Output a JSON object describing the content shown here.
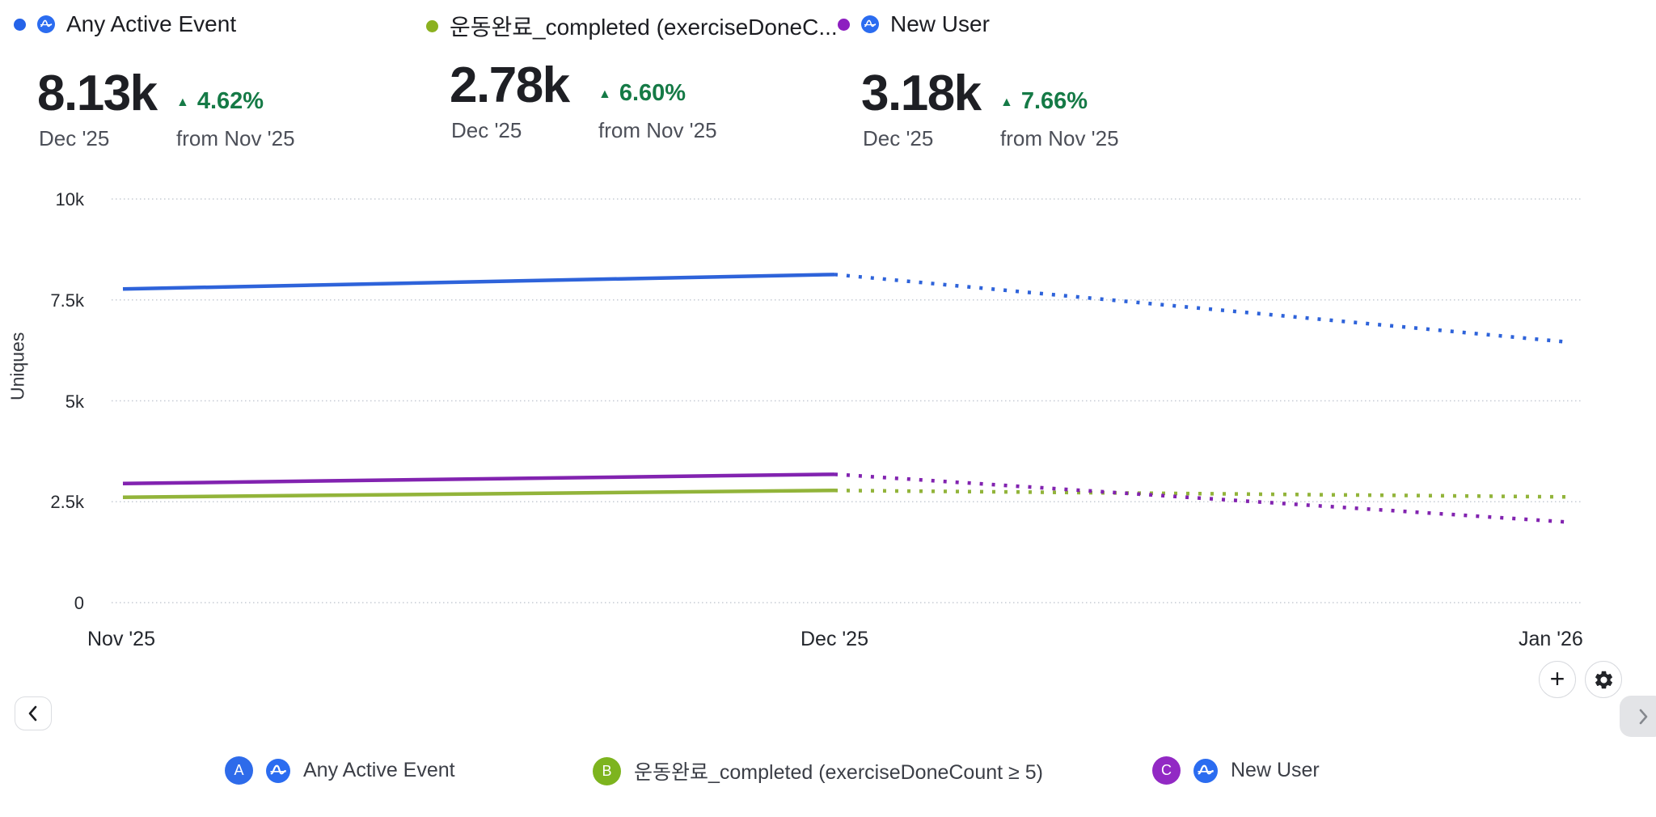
{
  "series_headers": [
    {
      "label": "Any Active Event",
      "dot_color": "#2563e8",
      "has_app_icon": true
    },
    {
      "label": "운동완료_completed (exerciseDoneC...",
      "dot_color": "#8bb120",
      "has_app_icon": false
    },
    {
      "label": "New User",
      "dot_color": "#8d1fc0",
      "has_app_icon": true
    }
  ],
  "metric_cards": [
    {
      "value": "8.13k",
      "period": "Dec '25",
      "delta_arrow": "▲",
      "delta": "4.62%",
      "delta_direction": "up",
      "compare": "from Nov '25"
    },
    {
      "value": "2.78k",
      "period": "Dec '25",
      "delta_arrow": "▲",
      "delta": "6.60%",
      "delta_direction": "up",
      "compare": "from Nov '25"
    },
    {
      "value": "3.18k",
      "period": "Dec '25",
      "delta_arrow": "▲",
      "delta": "7.66%",
      "delta_direction": "up",
      "compare": "from Nov '25"
    }
  ],
  "chart_data": {
    "type": "line",
    "x": [
      "Nov '25",
      "Dec '25",
      "Jan '26 (projected, partial)"
    ],
    "series": [
      {
        "name": "Any Active Event",
        "color": "#2e63da",
        "actual": [
          7770,
          8130
        ],
        "projected": [
          8130,
          6460
        ]
      },
      {
        "name": "운동완료_completed (exerciseDoneCount ≥ 5)",
        "color": "#92b43a",
        "actual": [
          2610,
          2780
        ],
        "projected": [
          2780,
          2620
        ]
      },
      {
        "name": "New User",
        "color": "#8223b0",
        "actual": [
          2950,
          3180
        ],
        "projected": [
          3180,
          2000
        ]
      }
    ],
    "ylabel": "Uniques",
    "ylim": [
      0,
      10000
    ],
    "yticks": [
      {
        "value": 0,
        "label": "0"
      },
      {
        "value": 2500,
        "label": "2.5k"
      },
      {
        "value": 5000,
        "label": "5k"
      },
      {
        "value": 7500,
        "label": "7.5k"
      },
      {
        "value": 10000,
        "label": "10k"
      }
    ],
    "xticks": [
      "Nov '25",
      "Dec '25",
      "Jan '26"
    ],
    "grid": "dotted-horizontal",
    "legend_position": "bottom",
    "projection_style": "dotted"
  },
  "legend": [
    {
      "badge": "A",
      "badge_color": "#2e6bea",
      "has_app_icon": true,
      "label": "Any Active Event"
    },
    {
      "badge": "B",
      "badge_color": "#7db41e",
      "has_app_icon": false,
      "label": "운동완료_completed (exerciseDoneCount ≥ 5)"
    },
    {
      "badge": "C",
      "badge_color": "#9229c4",
      "has_app_icon": true,
      "label": "New User"
    }
  ],
  "buttons": {
    "add_label": "+",
    "settings_icon": "gear-icon",
    "back_icon": "chevron-left-icon",
    "next_icon": "chevron-right-icon"
  },
  "colors": {
    "grid": "#c6cbd4",
    "delta_green": "#157a46",
    "app_icon_blue": "#2b6cf0"
  }
}
